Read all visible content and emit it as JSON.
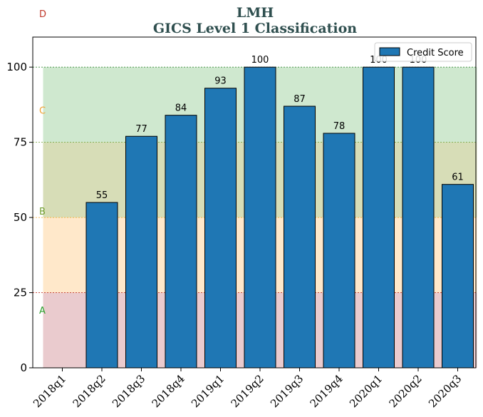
{
  "chart_data": {
    "type": "bar",
    "title": "LMH",
    "subtitle": "GICS Level 1 Classification",
    "categories": [
      "2018q1",
      "2018q2",
      "2018q3",
      "2018q4",
      "2019q1",
      "2019q2",
      "2019q3",
      "2019q4",
      "2020q1",
      "2020q2",
      "2020q3"
    ],
    "series": [
      {
        "name": "Credit Score",
        "values": [
          null,
          55,
          77,
          84,
          93,
          100,
          87,
          78,
          100,
          100,
          61
        ],
        "color": "#1f77b4"
      }
    ],
    "data_labels": [
      "",
      "55",
      "77",
      "84",
      "93",
      "100",
      "87",
      "78",
      "100",
      "100",
      "61"
    ],
    "ylim": [
      0,
      110
    ],
    "yticks": [
      0,
      25,
      50,
      75,
      100
    ],
    "ytick_labels": [
      "0",
      "25",
      "50",
      "75",
      "100"
    ],
    "xlabel": "",
    "ylabel": "",
    "legend_position": "top-right",
    "grid": false,
    "bands": [
      {
        "label": "A",
        "from": 0,
        "to": 25,
        "color": "#d9a0a6",
        "line_color": "#c0392b",
        "label_color": "#2ca02c"
      },
      {
        "label": "B",
        "from": 25,
        "to": 50,
        "color": "#ffd59e",
        "line_color": "#f5a623",
        "label_color": "#6f9e2f"
      },
      {
        "label": "C",
        "from": 50,
        "to": 100,
        "color": "#a8d5a8",
        "line_color": "#3a8a3a",
        "label_color": "#f0a030"
      },
      {
        "label": "D",
        "from": 100,
        "to": 110,
        "color": "#ffffff",
        "line_color": "#3a8a3a",
        "label_color": "#c0392b"
      }
    ],
    "title_color": "#2f4f4f"
  }
}
